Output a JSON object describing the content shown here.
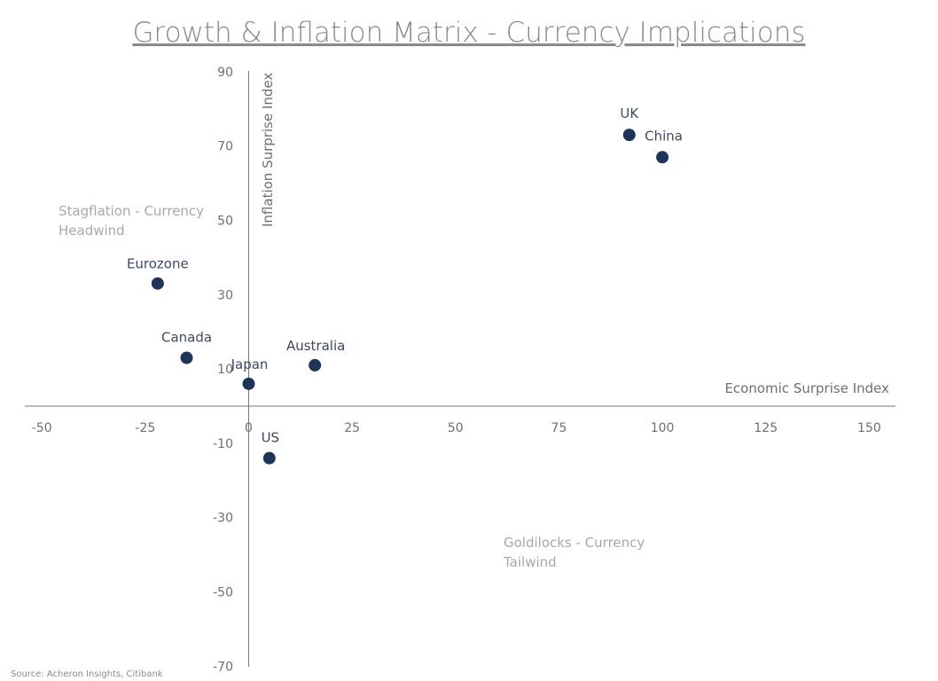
{
  "chart_data": {
    "type": "scatter",
    "title": "Growth & Inflation Matrix - Currency Implications",
    "xlabel": "Economic Surprise Index",
    "ylabel": "Inflation Surprise Index",
    "xlim": [
      -50,
      150
    ],
    "ylim": [
      -70,
      90
    ],
    "xticks": [
      "-50",
      "-25",
      "0",
      "25",
      "50",
      "75",
      "100",
      "125",
      "150"
    ],
    "yticks": [
      "90",
      "70",
      "50",
      "30",
      "10",
      "-10",
      "-30",
      "-50",
      "-70"
    ],
    "grid": false,
    "points": [
      {
        "label": "UK",
        "x": 92,
        "y": 73
      },
      {
        "label": "China",
        "x": 100,
        "y": 67
      },
      {
        "label": "Eurozone",
        "x": -22,
        "y": 33
      },
      {
        "label": "Canada",
        "x": -15,
        "y": 13
      },
      {
        "label": "Australia",
        "x": 16,
        "y": 11
      },
      {
        "label": "Japan",
        "x": 0,
        "y": 6
      },
      {
        "label": "US",
        "x": 5,
        "y": -14
      }
    ],
    "annotations": [
      {
        "line1": "Stagflation - Currency",
        "line2": "Headwind"
      },
      {
        "line1": "Goldilocks - Currency",
        "line2": "Tailwind"
      }
    ],
    "marker_color": "#1f3558",
    "source": "Source: Acheron Insights, Citibank"
  }
}
